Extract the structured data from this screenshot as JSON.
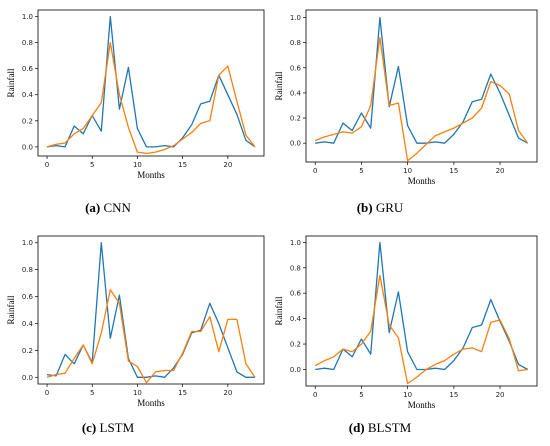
{
  "colors": {
    "series1": "#1f77b4",
    "series2": "#ff7f0e"
  },
  "chart_data": [
    {
      "type": "line",
      "panel_label": "(a)",
      "caption": "CNN",
      "xlabel": "Months",
      "ylabel": "Rainfall",
      "xlim": [
        -1,
        24
      ],
      "ylim": [
        -0.07,
        1.05
      ],
      "xticks": [
        0,
        5,
        10,
        15,
        20
      ],
      "yticks": [
        0.0,
        0.2,
        0.4,
        0.6,
        0.8,
        1.0
      ],
      "ytick_labels": [
        "0.0",
        "0.2",
        "0.4",
        "0.6",
        "0.8",
        "1.0"
      ],
      "x": [
        0,
        1,
        2,
        3,
        4,
        5,
        6,
        7,
        8,
        9,
        10,
        11,
        12,
        13,
        14,
        15,
        16,
        17,
        18,
        19,
        20,
        21,
        22,
        23
      ],
      "series": [
        {
          "values": [
            0.0,
            0.01,
            0.0,
            0.16,
            0.1,
            0.24,
            0.12,
            1.0,
            0.29,
            0.61,
            0.14,
            0.0,
            0.0,
            0.01,
            0.0,
            0.07,
            0.17,
            0.33,
            0.35,
            0.55,
            0.4,
            0.25,
            0.05,
            0.0
          ]
        },
        {
          "values": [
            0.0,
            0.02,
            0.03,
            0.1,
            0.14,
            0.24,
            0.34,
            0.8,
            0.4,
            0.15,
            -0.04,
            -0.05,
            -0.04,
            -0.02,
            0.01,
            0.06,
            0.11,
            0.18,
            0.2,
            0.55,
            0.62,
            0.35,
            0.09,
            0.0
          ]
        }
      ]
    },
    {
      "type": "line",
      "panel_label": "(b)",
      "caption": "GRU",
      "xlabel": "Months",
      "ylabel": "Rainfall",
      "xlim": [
        -1,
        24
      ],
      "ylim": [
        -0.15,
        1.06
      ],
      "xticks": [
        0,
        5,
        10,
        15,
        20
      ],
      "yticks": [
        0.0,
        0.2,
        0.4,
        0.6,
        0.8,
        1.0
      ],
      "ytick_labels": [
        "0.0",
        "0.2",
        "0.4",
        "0.6",
        "0.8",
        "1.0"
      ],
      "x": [
        0,
        1,
        2,
        3,
        4,
        5,
        6,
        7,
        8,
        9,
        10,
        11,
        12,
        13,
        14,
        15,
        16,
        17,
        18,
        19,
        20,
        21,
        22,
        23
      ],
      "series": [
        {
          "values": [
            0.0,
            0.01,
            0.0,
            0.16,
            0.1,
            0.24,
            0.12,
            1.0,
            0.29,
            0.61,
            0.14,
            0.0,
            0.0,
            0.01,
            0.0,
            0.07,
            0.17,
            0.33,
            0.35,
            0.55,
            0.4,
            0.22,
            0.04,
            0.0
          ]
        },
        {
          "values": [
            0.02,
            0.05,
            0.07,
            0.09,
            0.08,
            0.13,
            0.3,
            0.84,
            0.3,
            0.32,
            -0.14,
            -0.08,
            -0.01,
            0.06,
            0.09,
            0.12,
            0.16,
            0.2,
            0.28,
            0.49,
            0.46,
            0.39,
            0.1,
            0.0
          ]
        }
      ]
    },
    {
      "type": "line",
      "panel_label": "(c)",
      "caption": "LSTM",
      "xlabel": "Months",
      "ylabel": "Rainfall",
      "xlim": [
        -1,
        24
      ],
      "ylim": [
        -0.05,
        1.05
      ],
      "xticks": [
        0,
        5,
        10,
        15,
        20
      ],
      "yticks": [
        0.0,
        0.2,
        0.4,
        0.6,
        0.8,
        1.0
      ],
      "ytick_labels": [
        "0.0",
        "0.2",
        "0.4",
        "0.6",
        "0.8",
        "1.0"
      ],
      "x": [
        0,
        1,
        2,
        3,
        4,
        5,
        6,
        7,
        8,
        9,
        10,
        11,
        12,
        13,
        14,
        15,
        16,
        17,
        18,
        19,
        20,
        21,
        22,
        23
      ],
      "series": [
        {
          "values": [
            0.02,
            0.01,
            0.17,
            0.1,
            0.24,
            0.11,
            1.0,
            0.29,
            0.61,
            0.14,
            0.0,
            0.0,
            0.01,
            0.0,
            0.07,
            0.17,
            0.33,
            0.35,
            0.55,
            0.4,
            0.22,
            0.04,
            0.0,
            0.0
          ]
        },
        {
          "values": [
            0.0,
            0.02,
            0.03,
            0.14,
            0.24,
            0.1,
            0.33,
            0.65,
            0.55,
            0.12,
            0.08,
            -0.04,
            0.04,
            0.05,
            0.05,
            0.18,
            0.34,
            0.34,
            0.45,
            0.19,
            0.43,
            0.43,
            0.1,
            0.0
          ]
        }
      ]
    },
    {
      "type": "line",
      "panel_label": "(d)",
      "caption": "BLSTM",
      "xlabel": "Months",
      "ylabel": "Rainfall",
      "xlim": [
        -1,
        24
      ],
      "ylim": [
        -0.13,
        1.05
      ],
      "xticks": [
        0,
        5,
        10,
        15,
        20
      ],
      "yticks": [
        0.0,
        0.2,
        0.4,
        0.6,
        0.8,
        1.0
      ],
      "ytick_labels": [
        "0.0",
        "0.2",
        "0.4",
        "0.6",
        "0.8",
        "1.0"
      ],
      "x": [
        0,
        1,
        2,
        3,
        4,
        5,
        6,
        7,
        8,
        9,
        10,
        11,
        12,
        13,
        14,
        15,
        16,
        17,
        18,
        19,
        20,
        21,
        22,
        23
      ],
      "series": [
        {
          "values": [
            0.0,
            0.01,
            0.0,
            0.16,
            0.1,
            0.24,
            0.12,
            1.0,
            0.29,
            0.61,
            0.14,
            0.0,
            0.0,
            0.01,
            0.0,
            0.07,
            0.17,
            0.33,
            0.35,
            0.55,
            0.38,
            0.22,
            0.04,
            0.0
          ]
        },
        {
          "values": [
            0.03,
            0.07,
            0.1,
            0.16,
            0.14,
            0.2,
            0.3,
            0.74,
            0.35,
            0.25,
            -0.11,
            -0.06,
            0.0,
            0.04,
            0.07,
            0.12,
            0.16,
            0.17,
            0.14,
            0.37,
            0.39,
            0.24,
            -0.01,
            0.0
          ]
        }
      ]
    }
  ]
}
